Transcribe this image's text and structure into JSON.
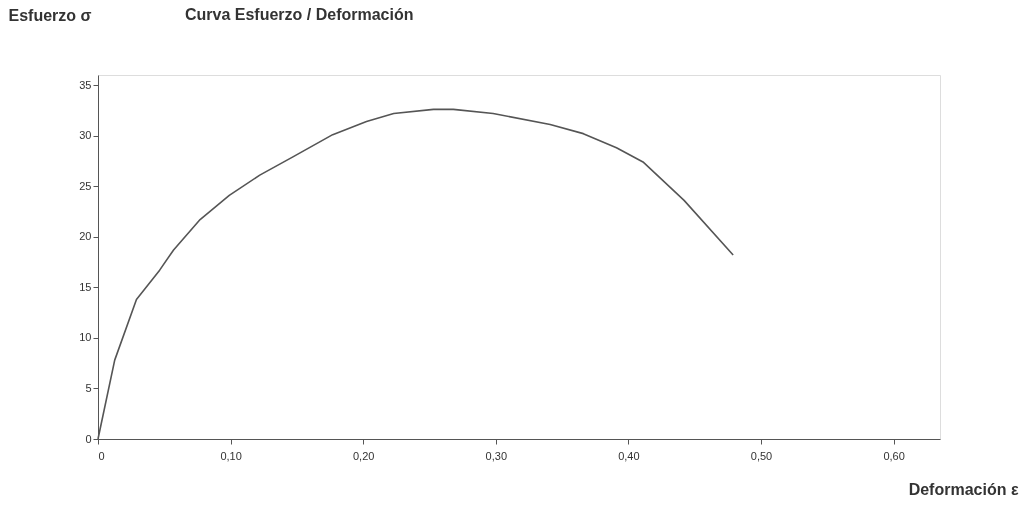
{
  "chart_data": {
    "type": "line",
    "title": "Curva Esfuerzo / Deformación",
    "xlabel": "Deformación ε",
    "ylabel": "Esfuerzo σ",
    "x": [
      0,
      0.0126,
      0.029,
      0.0465,
      0.057,
      0.077,
      0.099,
      0.122,
      0.147,
      0.177,
      0.2025,
      0.223,
      0.253,
      0.268,
      0.298,
      0.341,
      0.366,
      0.391,
      0.411,
      0.442,
      0.479
    ],
    "series": [
      {
        "color": "#555555",
        "values": [
          0,
          7.8,
          13.8,
          16.7,
          18.7,
          21.7,
          24.1,
          26.1,
          27.9,
          30.1,
          31.4,
          32.2,
          32.6,
          32.6,
          32.2,
          31.1,
          30.2,
          28.8,
          27.4,
          23.6,
          18.2
        ]
      }
    ],
    "xlim": [
      0,
      0.635
    ],
    "ylim": [
      0,
      36
    ],
    "xticks": [
      0,
      {
        "value": 0.1,
        "label": "0,10"
      },
      {
        "value": 0.2,
        "label": "0,20"
      },
      {
        "value": 0.3,
        "label": "0,30"
      },
      {
        "value": 0.4,
        "label": "0,40"
      },
      {
        "value": 0.5,
        "label": "0,50"
      },
      {
        "value": 0.6,
        "label": "0,60"
      }
    ],
    "yticks": [
      0,
      5,
      10,
      15,
      20,
      25,
      30,
      35
    ],
    "grid": false,
    "marker": "none",
    "line_style": "solid"
  }
}
